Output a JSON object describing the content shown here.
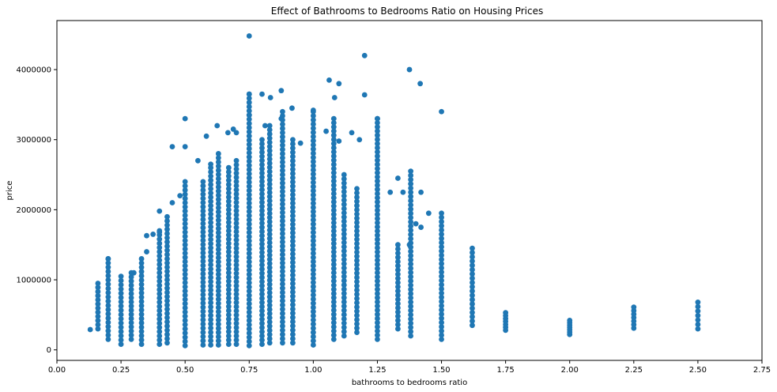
{
  "chart_data": {
    "type": "scatter",
    "title": "Effect of Bathrooms to Bedrooms Ratio on Housing Prices",
    "xlabel": "bathrooms to bedrooms ratio",
    "ylabel": "price",
    "xlim": [
      0.0,
      2.75
    ],
    "ylim": [
      -150000,
      4700000
    ],
    "x_ticks": [
      "0.00",
      "0.25",
      "0.50",
      "0.75",
      "1.00",
      "1.25",
      "1.50",
      "1.75",
      "2.00",
      "2.25",
      "2.50",
      "2.75"
    ],
    "y_ticks": [
      "0",
      "1000000",
      "2000000",
      "3000000",
      "4000000"
    ],
    "grid": false,
    "marker_color": "#1f77b4",
    "columns": [
      {
        "x": 0.16,
        "min": 300000,
        "max": 950000
      },
      {
        "x": 0.2,
        "min": 150000,
        "max": 1300000
      },
      {
        "x": 0.25,
        "min": 80000,
        "max": 1050000
      },
      {
        "x": 0.29,
        "min": 150000,
        "max": 1100000
      },
      {
        "x": 0.33,
        "min": 80000,
        "max": 1300000
      },
      {
        "x": 0.4,
        "min": 80000,
        "max": 1700000
      },
      {
        "x": 0.43,
        "min": 100000,
        "max": 1900000
      },
      {
        "x": 0.5,
        "min": 60000,
        "max": 2400000
      },
      {
        "x": 0.57,
        "min": 70000,
        "max": 2400000
      },
      {
        "x": 0.6,
        "min": 70000,
        "max": 2600000
      },
      {
        "x": 0.63,
        "min": 70000,
        "max": 2800000
      },
      {
        "x": 0.67,
        "min": 80000,
        "max": 2600000
      },
      {
        "x": 0.7,
        "min": 80000,
        "max": 2700000
      },
      {
        "x": 0.75,
        "min": 60000,
        "max": 3650000
      },
      {
        "x": 0.8,
        "min": 80000,
        "max": 3000000
      },
      {
        "x": 0.83,
        "min": 100000,
        "max": 3200000
      },
      {
        "x": 0.88,
        "min": 100000,
        "max": 3400000
      },
      {
        "x": 0.92,
        "min": 100000,
        "max": 3000000
      },
      {
        "x": 1.0,
        "min": 70000,
        "max": 3400000
      },
      {
        "x": 1.08,
        "min": 150000,
        "max": 3300000
      },
      {
        "x": 1.12,
        "min": 200000,
        "max": 2500000
      },
      {
        "x": 1.17,
        "min": 250000,
        "max": 2300000
      },
      {
        "x": 1.25,
        "min": 150000,
        "max": 3300000
      },
      {
        "x": 1.33,
        "min": 300000,
        "max": 1500000
      },
      {
        "x": 1.38,
        "min": 200000,
        "max": 2550000
      },
      {
        "x": 1.5,
        "min": 150000,
        "max": 1950000
      },
      {
        "x": 1.62,
        "min": 350000,
        "max": 1450000
      },
      {
        "x": 1.75,
        "min": 280000,
        "max": 530000
      },
      {
        "x": 2.0,
        "min": 220000,
        "max": 420000
      },
      {
        "x": 2.25,
        "min": 310000,
        "max": 610000
      },
      {
        "x": 2.5,
        "min": 300000,
        "max": 680000
      }
    ],
    "points": [
      [
        0.75,
        4480000
      ],
      [
        1.2,
        4200000
      ],
      [
        1.375,
        4000000
      ],
      [
        1.417,
        3800000
      ],
      [
        1.062,
        3850000
      ],
      [
        1.1,
        3800000
      ],
      [
        0.875,
        3700000
      ],
      [
        0.75,
        3650000
      ],
      [
        0.8,
        3650000
      ],
      [
        1.2,
        3640000
      ],
      [
        1.083,
        3600000
      ],
      [
        0.833,
        3600000
      ],
      [
        0.917,
        3450000
      ],
      [
        1.5,
        3400000
      ],
      [
        0.75,
        3350000
      ],
      [
        0.875,
        3300000
      ],
      [
        0.5,
        3300000
      ],
      [
        0.625,
        3200000
      ],
      [
        0.688,
        3150000
      ],
      [
        0.812,
        3200000
      ],
      [
        1.25,
        3300000
      ],
      [
        1.0,
        3420000
      ],
      [
        0.583,
        3050000
      ],
      [
        0.667,
        3100000
      ],
      [
        0.7,
        3100000
      ],
      [
        1.15,
        3100000
      ],
      [
        1.05,
        3120000
      ],
      [
        1.18,
        3000000
      ],
      [
        0.45,
        2900000
      ],
      [
        0.5,
        2900000
      ],
      [
        0.95,
        2950000
      ],
      [
        1.1,
        2980000
      ],
      [
        0.55,
        2700000
      ],
      [
        0.6,
        2650000
      ],
      [
        0.4,
        1680000
      ],
      [
        0.375,
        1650000
      ],
      [
        0.2,
        1300000
      ],
      [
        0.35,
        1400000
      ],
      [
        0.45,
        2100000
      ],
      [
        0.48,
        2200000
      ],
      [
        1.3,
        2250000
      ],
      [
        1.35,
        2250000
      ],
      [
        1.42,
        2250000
      ],
      [
        1.45,
        1950000
      ],
      [
        1.33,
        2450000
      ],
      [
        1.4,
        1800000
      ],
      [
        1.375,
        1500000
      ],
      [
        1.42,
        1750000
      ],
      [
        0.4,
        1980000
      ],
      [
        0.35,
        1630000
      ],
      [
        0.3,
        1100000
      ],
      [
        0.13,
        290000
      ]
    ]
  }
}
